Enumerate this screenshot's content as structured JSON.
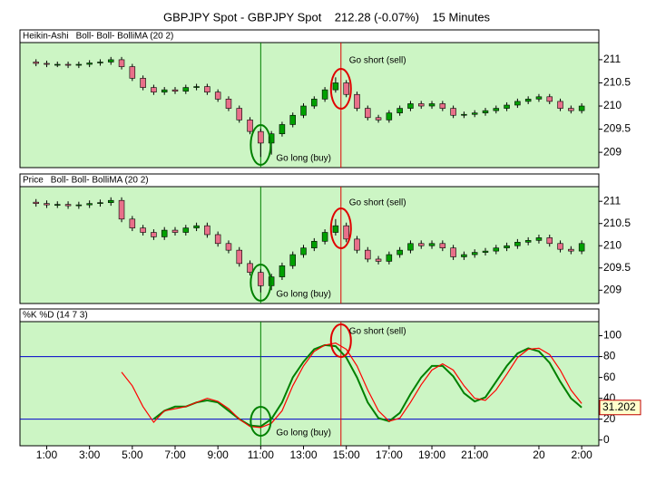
{
  "title": "GBPJPY Spot - GBPJPY Spot    212.28 (-0.07%)    15 Minutes",
  "chart_data": [
    {
      "type": "candlestick",
      "label": "Heikin-Ashi",
      "overlay_label": "Boll- Boll- BolliMA (20 2)",
      "up_color": "#00a000",
      "down_color": "#e8708a",
      "xlim": [
        -0.25,
        26.8
      ],
      "ylim": [
        208.67,
        211.37
      ],
      "yticks": [
        211,
        210.5,
        210,
        209.5,
        209
      ],
      "vlines": [
        {
          "x": 11,
          "color": "#008000"
        },
        {
          "x": 14.75,
          "color": "#e00000"
        }
      ],
      "annotations": [
        "Go long (buy)",
        "Go short (sell)"
      ],
      "x": [
        0.5,
        1,
        1.5,
        2,
        2.5,
        3,
        3.5,
        4,
        4.5,
        5,
        5.5,
        6,
        6.5,
        7,
        7.5,
        8,
        8.5,
        9,
        9.5,
        10,
        10.5,
        11,
        11.5,
        12,
        12.5,
        13,
        13.5,
        14,
        14.5,
        15,
        15.5,
        16,
        16.5,
        17,
        17.5,
        18,
        18.5,
        19,
        19.5,
        20,
        20.5,
        21,
        21.5,
        22,
        22.5,
        23,
        23.5,
        24,
        24.5,
        25,
        25.5,
        26
      ],
      "open": [
        210.95,
        210.92,
        210.9,
        210.9,
        210.88,
        210.9,
        210.93,
        210.95,
        211,
        210.85,
        210.6,
        210.4,
        210.3,
        210.35,
        210.32,
        210.4,
        210.42,
        210.3,
        210.15,
        209.95,
        209.7,
        209.45,
        209.2,
        209.4,
        209.6,
        209.8,
        210,
        210.15,
        210.35,
        210.5,
        210.25,
        209.95,
        209.75,
        209.7,
        209.85,
        209.95,
        210.05,
        210,
        210.05,
        209.95,
        209.8,
        209.82,
        209.85,
        209.9,
        209.95,
        210.02,
        210.1,
        210.15,
        210.2,
        210.1,
        209.95,
        209.9
      ],
      "close": [
        210.92,
        210.9,
        210.9,
        210.88,
        210.9,
        210.93,
        210.95,
        211,
        210.85,
        210.6,
        210.4,
        210.3,
        210.35,
        210.32,
        210.4,
        210.42,
        210.3,
        210.15,
        209.95,
        209.7,
        209.45,
        209.2,
        209.4,
        209.6,
        209.8,
        210,
        210.15,
        210.35,
        210.5,
        210.25,
        209.95,
        209.75,
        209.7,
        209.85,
        209.95,
        210.05,
        210,
        210.05,
        209.95,
        209.8,
        209.82,
        209.85,
        209.9,
        209.95,
        210.02,
        210.1,
        210.15,
        210.2,
        210.1,
        209.95,
        209.9,
        210
      ],
      "high": [
        211.01,
        210.98,
        210.96,
        210.96,
        210.96,
        210.99,
        211.01,
        211.06,
        211.06,
        210.91,
        210.66,
        210.46,
        210.41,
        210.41,
        210.46,
        210.48,
        210.48,
        210.36,
        210.21,
        210.01,
        209.76,
        209.51,
        209.46,
        209.66,
        209.86,
        210.06,
        210.21,
        210.41,
        210.62,
        210.56,
        210.31,
        210.01,
        209.81,
        209.91,
        210.01,
        210.11,
        210.11,
        210.11,
        210.11,
        210.01,
        209.88,
        209.91,
        209.96,
        210.01,
        210.08,
        210.16,
        210.21,
        210.26,
        210.26,
        210.16,
        210.01,
        210.06
      ],
      "low": [
        210.86,
        210.84,
        210.84,
        210.82,
        210.82,
        210.84,
        210.87,
        210.89,
        210.79,
        210.54,
        210.34,
        210.24,
        210.24,
        210.26,
        210.26,
        210.34,
        210.24,
        210.09,
        209.89,
        209.64,
        209.39,
        208.9,
        208.95,
        209.34,
        209.54,
        209.74,
        209.94,
        210.09,
        210.29,
        210.19,
        209.89,
        209.69,
        209.64,
        209.64,
        209.79,
        209.89,
        209.94,
        209.94,
        209.89,
        209.74,
        209.74,
        209.76,
        209.79,
        209.84,
        209.89,
        209.96,
        210.04,
        210.09,
        210.04,
        209.89,
        209.84,
        209.84
      ]
    },
    {
      "type": "candlestick",
      "label": "Price",
      "overlay_label": "Boll- Boll- BolliMA (20 2)",
      "up_color": "#00a000",
      "down_color": "#e8708a",
      "xlim": [
        -0.25,
        26.8
      ],
      "ylim": [
        208.7,
        211.33
      ],
      "yticks": [
        211,
        210.5,
        210,
        209.5,
        209
      ],
      "vlines": [
        {
          "x": 11,
          "color": "#008000"
        },
        {
          "x": 14.75,
          "color": "#e00000"
        }
      ],
      "annotations": [
        "Go long (buy)",
        "Go short (sell)"
      ],
      "x": [
        0.5,
        1,
        1.5,
        2,
        2.5,
        3,
        3.5,
        4,
        4.5,
        5,
        5.5,
        6,
        6.5,
        7,
        7.5,
        8,
        8.5,
        9,
        9.5,
        10,
        10.5,
        11,
        11.5,
        12,
        12.5,
        13,
        13.5,
        14,
        14.5,
        15,
        15.5,
        16,
        16.5,
        17,
        17.5,
        18,
        18.5,
        19,
        19.5,
        20,
        20.5,
        21,
        21.5,
        22,
        22.5,
        23,
        23.5,
        24,
        24.5,
        25,
        25.5,
        26
      ],
      "open": [
        210.98,
        210.95,
        210.92,
        210.93,
        210.9,
        210.92,
        210.95,
        210.97,
        211.02,
        210.6,
        210.4,
        210.3,
        210.2,
        210.35,
        210.3,
        210.4,
        210.45,
        210.25,
        210.05,
        209.9,
        209.6,
        209.4,
        209.1,
        209.3,
        209.55,
        209.8,
        209.95,
        210.1,
        210.3,
        210.45,
        210.15,
        209.9,
        209.7,
        209.65,
        209.8,
        209.9,
        210.05,
        210,
        210.05,
        209.95,
        209.75,
        209.8,
        209.85,
        209.88,
        209.95,
        210,
        210.08,
        210.12,
        210.18,
        210.05,
        209.92,
        209.88
      ],
      "close": [
        210.95,
        210.92,
        210.93,
        210.9,
        210.92,
        210.95,
        210.97,
        211.02,
        210.6,
        210.4,
        210.3,
        210.2,
        210.35,
        210.3,
        210.4,
        210.45,
        210.25,
        210.05,
        209.9,
        209.6,
        209.4,
        209.1,
        209.3,
        209.55,
        209.8,
        209.95,
        210.1,
        210.3,
        210.45,
        210.15,
        209.9,
        209.7,
        209.65,
        209.8,
        209.9,
        210.05,
        210,
        210.05,
        209.95,
        209.75,
        209.8,
        209.85,
        209.88,
        209.95,
        210,
        210.08,
        210.12,
        210.18,
        210.05,
        209.92,
        209.88,
        210.05
      ],
      "high": [
        211.05,
        211.02,
        211,
        211,
        210.99,
        211.02,
        211.04,
        211.09,
        211.09,
        210.67,
        210.47,
        210.37,
        210.42,
        210.42,
        210.47,
        210.52,
        210.52,
        210.32,
        210.12,
        209.97,
        209.67,
        209.47,
        209.37,
        209.62,
        209.87,
        210.02,
        210.17,
        210.37,
        210.6,
        210.52,
        210.22,
        209.97,
        209.77,
        209.87,
        209.97,
        210.12,
        210.12,
        210.12,
        210.12,
        210.02,
        209.87,
        209.92,
        209.95,
        210.02,
        210.07,
        210.15,
        210.19,
        210.25,
        210.25,
        210.12,
        209.99,
        210.12
      ],
      "low": [
        210.88,
        210.85,
        210.85,
        210.83,
        210.83,
        210.85,
        210.88,
        210.9,
        210.53,
        210.33,
        210.23,
        210.13,
        210.13,
        210.23,
        210.23,
        210.33,
        210.18,
        209.98,
        209.83,
        209.53,
        209.33,
        208.95,
        209,
        209.23,
        209.48,
        209.73,
        209.88,
        210.03,
        210.23,
        210.08,
        209.83,
        209.63,
        209.58,
        209.58,
        209.73,
        209.83,
        209.93,
        209.93,
        209.88,
        209.68,
        209.68,
        209.73,
        209.78,
        209.81,
        209.88,
        209.93,
        210.01,
        210.05,
        209.98,
        209.85,
        209.81,
        209.81
      ]
    },
    {
      "type": "line",
      "label": "%K %D (14 7 3)",
      "xlim": [
        -0.25,
        26.8
      ],
      "ylim": [
        -5.5,
        113.5
      ],
      "yticks": [
        0,
        20,
        40,
        60,
        80,
        100
      ],
      "hlines": [
        80,
        20
      ],
      "hline_color": "#0000cc",
      "vlines": [
        {
          "x": 11,
          "color": "#008000"
        },
        {
          "x": 14.75,
          "color": "#e00000"
        }
      ],
      "annotations": [
        "Go long (buy)",
        "Go short (sell)"
      ],
      "xticks": [
        {
          "value": 1,
          "label": "1:00"
        },
        {
          "value": 3,
          "label": "3:00"
        },
        {
          "value": 5,
          "label": "5:00"
        },
        {
          "value": 7,
          "label": "7:00"
        },
        {
          "value": 9,
          "label": "9:00"
        },
        {
          "value": 11,
          "label": "11:00"
        },
        {
          "value": 13,
          "label": "13:00"
        },
        {
          "value": 15,
          "label": "15:00"
        },
        {
          "value": 17,
          "label": "17:00"
        },
        {
          "value": 19,
          "label": "19:00"
        },
        {
          "value": 21,
          "label": "21:00"
        },
        {
          "value": 24,
          "label": "20"
        },
        {
          "value": 26,
          "label": "2:00"
        }
      ],
      "x": [
        0.5,
        1,
        1.5,
        2,
        2.5,
        3,
        3.5,
        4,
        4.5,
        5,
        5.5,
        6,
        6.5,
        7,
        7.5,
        8,
        8.5,
        9,
        9.5,
        10,
        10.5,
        11,
        11.5,
        12,
        12.5,
        13,
        13.5,
        14,
        14.5,
        15,
        15.5,
        16,
        16.5,
        17,
        17.5,
        18,
        18.5,
        19,
        19.5,
        20,
        20.5,
        21,
        21.5,
        22,
        22.5,
        23,
        23.5,
        24,
        24.5,
        25,
        25.5,
        26
      ],
      "series": [
        {
          "color": "#008000",
          "width": 2,
          "values": [
            null,
            null,
            null,
            null,
            null,
            null,
            null,
            null,
            null,
            null,
            null,
            20,
            28,
            32,
            32,
            36,
            38,
            36,
            28,
            20,
            14,
            13,
            20,
            36,
            60,
            75,
            87,
            91,
            90,
            79,
            60,
            36,
            21,
            18,
            26,
            44,
            60,
            71,
            71,
            61,
            45,
            37,
            41,
            56,
            71,
            83,
            88,
            85,
            74,
            56,
            40,
            31.202
          ]
        },
        {
          "color": "#ff0000",
          "width": 1.2,
          "values": [
            null,
            null,
            null,
            null,
            null,
            null,
            null,
            null,
            65,
            52,
            32,
            17,
            28,
            30,
            32,
            36,
            40,
            37,
            30,
            20,
            13,
            12,
            16,
            28,
            52,
            71,
            85,
            91,
            93,
            87,
            71,
            48,
            28,
            18,
            21,
            36,
            53,
            67,
            73,
            67,
            52,
            40,
            38,
            48,
            63,
            79,
            87,
            88,
            82,
            67,
            48,
            35
          ]
        }
      ]
    }
  ]
}
